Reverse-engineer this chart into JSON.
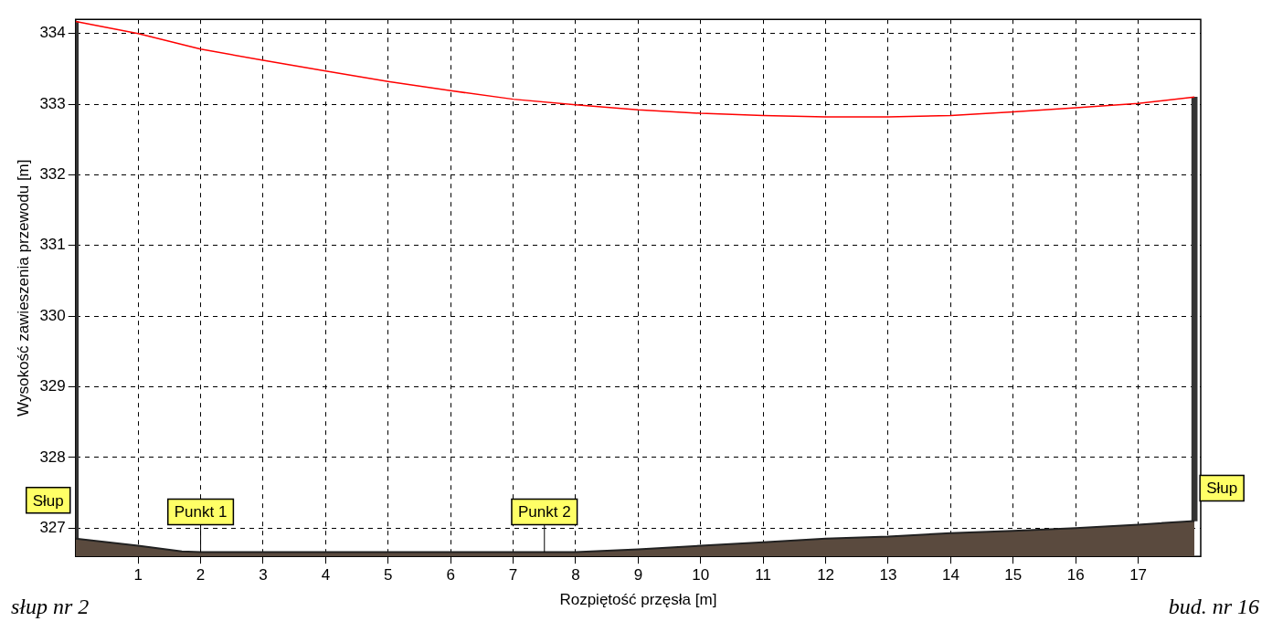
{
  "chart_data": {
    "type": "line",
    "xlabel": "Rozpiętość przęsła [m]",
    "ylabel": "Wysokość zawieszenia przewodu [m]",
    "xlim": [
      0,
      18
    ],
    "xticks": [
      1,
      2,
      3,
      4,
      5,
      6,
      7,
      8,
      9,
      10,
      11,
      12,
      13,
      14,
      15,
      16,
      17
    ],
    "ylim": [
      326.6,
      334.2
    ],
    "yticks": [
      327,
      328,
      329,
      330,
      331,
      332,
      333,
      334
    ],
    "grid": true,
    "legend": false,
    "marker": "none",
    "series": [
      {
        "type": "line",
        "color": "#ff0000",
        "x": [
          0,
          1,
          2,
          3,
          4,
          5,
          6,
          7,
          8,
          9,
          10,
          11,
          12,
          13,
          14,
          15,
          16,
          17,
          17.9
        ],
        "values": [
          334.17,
          334.0,
          333.78,
          333.62,
          333.47,
          333.32,
          333.19,
          333.07,
          332.99,
          332.92,
          332.87,
          332.84,
          332.82,
          332.82,
          332.84,
          332.89,
          332.95,
          333.01,
          333.1
        ]
      },
      {
        "type": "area",
        "color": "#5a4a3e",
        "x": [
          0,
          1,
          1.7,
          2,
          3,
          4,
          5,
          6,
          7,
          8,
          9,
          10,
          11,
          12,
          13,
          14,
          15,
          16,
          17,
          17.9
        ],
        "values": [
          326.85,
          326.75,
          326.67,
          326.66,
          326.66,
          326.66,
          326.66,
          326.66,
          326.66,
          326.66,
          326.7,
          326.75,
          326.8,
          326.85,
          326.88,
          326.93,
          326.96,
          327.0,
          327.05,
          327.1
        ]
      },
      {
        "type": "bar",
        "color": "#333333",
        "x": [
          0,
          17.9
        ],
        "base": [
          326.85,
          327.1
        ],
        "values": [
          7.32,
          6.0
        ]
      }
    ],
    "annotations": [
      {
        "text": "Słup",
        "x": 0,
        "y": 326.85
      },
      {
        "text": "Punkt 1",
        "x": 2,
        "y": 326.66
      },
      {
        "text": "Punkt 2",
        "x": 7.5,
        "y": 326.66
      },
      {
        "text": "Słup",
        "x": 17.9,
        "y": 327.1
      },
      "słup nr 2",
      "bud. nr 16"
    ]
  }
}
